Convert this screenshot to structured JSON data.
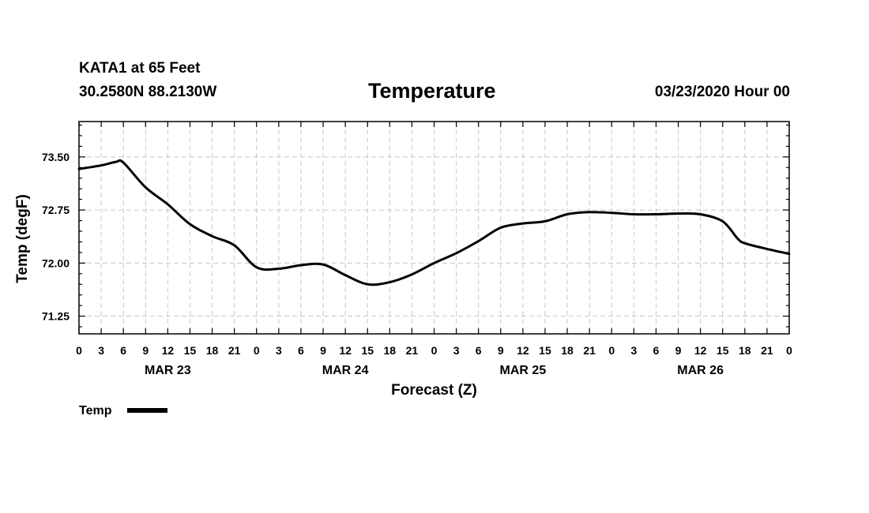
{
  "header": {
    "station": "KATA1 at 65 Feet",
    "coords": "30.2580N 88.2130W",
    "title": "Temperature",
    "issued": "03/23/2020 Hour 00"
  },
  "legend": {
    "label": "Temp"
  },
  "chart_data": {
    "type": "line",
    "title": "Temperature",
    "xlabel": "Forecast (Z)",
    "ylabel": "Temp (degF)",
    "ylim": [
      71.0,
      74.0
    ],
    "yticks": [
      "73.50",
      "72.75",
      "72.00",
      "71.25"
    ],
    "ytick_values": [
      73.5,
      72.75,
      72.0,
      71.25
    ],
    "xlim": [
      0,
      96
    ],
    "x_tick_labels": [
      "0",
      "3",
      "6",
      "9",
      "12",
      "15",
      "18",
      "21",
      "0",
      "3",
      "6",
      "9",
      "12",
      "15",
      "18",
      "21",
      "0",
      "3",
      "6",
      "9",
      "12",
      "15",
      "18",
      "21",
      "0",
      "3",
      "6",
      "9",
      "12",
      "15",
      "18",
      "21",
      "0"
    ],
    "x_tick_hours": [
      0,
      3,
      6,
      9,
      12,
      15,
      18,
      21,
      24,
      27,
      30,
      33,
      36,
      39,
      42,
      45,
      48,
      51,
      54,
      57,
      60,
      63,
      66,
      69,
      72,
      75,
      78,
      81,
      84,
      87,
      90,
      93,
      96
    ],
    "day_labels": [
      "MAR 23",
      "MAR 24",
      "MAR 25",
      "MAR 26"
    ],
    "day_label_hours": [
      12,
      36,
      60,
      84
    ],
    "grid": true,
    "legend_position": "bottom-left",
    "series": [
      {
        "name": "Temp",
        "x": [
          0,
          3,
          5,
          6,
          9,
          12,
          15,
          18,
          21,
          24,
          27,
          30,
          33,
          36,
          39,
          42,
          45,
          48,
          51,
          54,
          57,
          60,
          63,
          66,
          69,
          72,
          75,
          78,
          81,
          84,
          87,
          89,
          90,
          93,
          96
        ],
        "y": [
          73.33,
          73.38,
          73.43,
          73.42,
          73.07,
          72.83,
          72.55,
          72.38,
          72.25,
          71.94,
          71.92,
          71.97,
          71.98,
          71.83,
          71.7,
          71.73,
          71.84,
          72.0,
          72.14,
          72.31,
          72.5,
          72.56,
          72.59,
          72.69,
          72.72,
          72.71,
          72.69,
          72.69,
          72.7,
          72.69,
          72.59,
          72.35,
          72.28,
          72.2,
          72.13
        ]
      }
    ]
  }
}
